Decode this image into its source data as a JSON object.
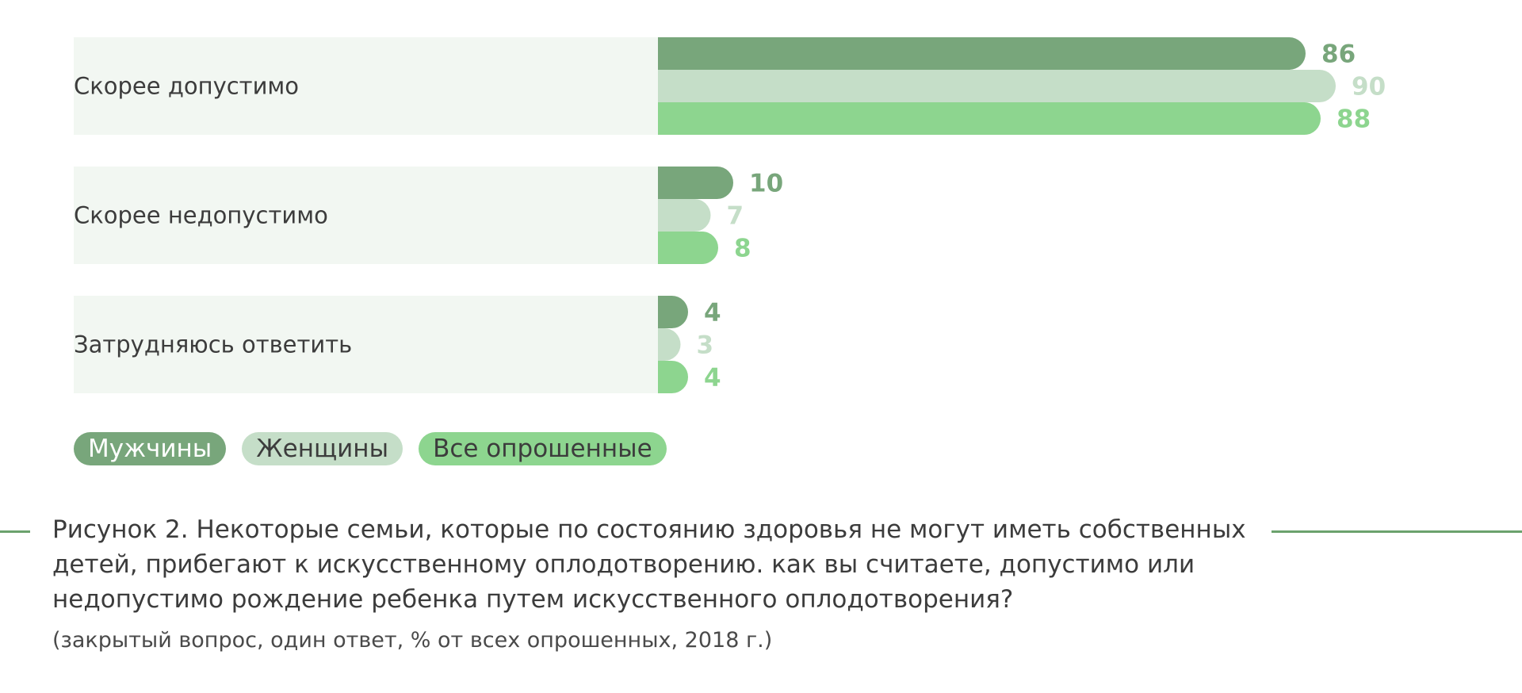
{
  "colors": {
    "men": "#78a67b",
    "women": "#c5dec8",
    "all": "#8dd58f",
    "category_bg": "#f2f7f2",
    "caption_line": "#6ba26d",
    "legend_text_dark": "#ffffff",
    "legend_text_light": "#3c3c3c"
  },
  "chart_data": {
    "type": "bar",
    "orientation": "horizontal",
    "categories": [
      "Скорее допустимо",
      "Скорее недопустимо",
      "Затрудняюсь ответить"
    ],
    "series": [
      {
        "name": "Мужчины",
        "values": [
          86,
          10,
          4
        ]
      },
      {
        "name": "Женщины",
        "values": [
          90,
          7,
          3
        ]
      },
      {
        "name": "Все опрошенные",
        "values": [
          88,
          8,
          4
        ]
      }
    ],
    "xlim": [
      0,
      100
    ],
    "grid": false,
    "legend_position": "bottom-left"
  },
  "caption": {
    "title": "Рисунок 2. Некоторые семьи, которые по состоянию здоровья не могут иметь собственных детей, прибегают к искусственному оплодотворению. как вы считаете, допустимо или недопустимо рождение ребенка путем искусственного оплодотворения?",
    "note": "(закрытый вопрос, один ответ, % от всех опрошенных, 2018 г.)"
  }
}
